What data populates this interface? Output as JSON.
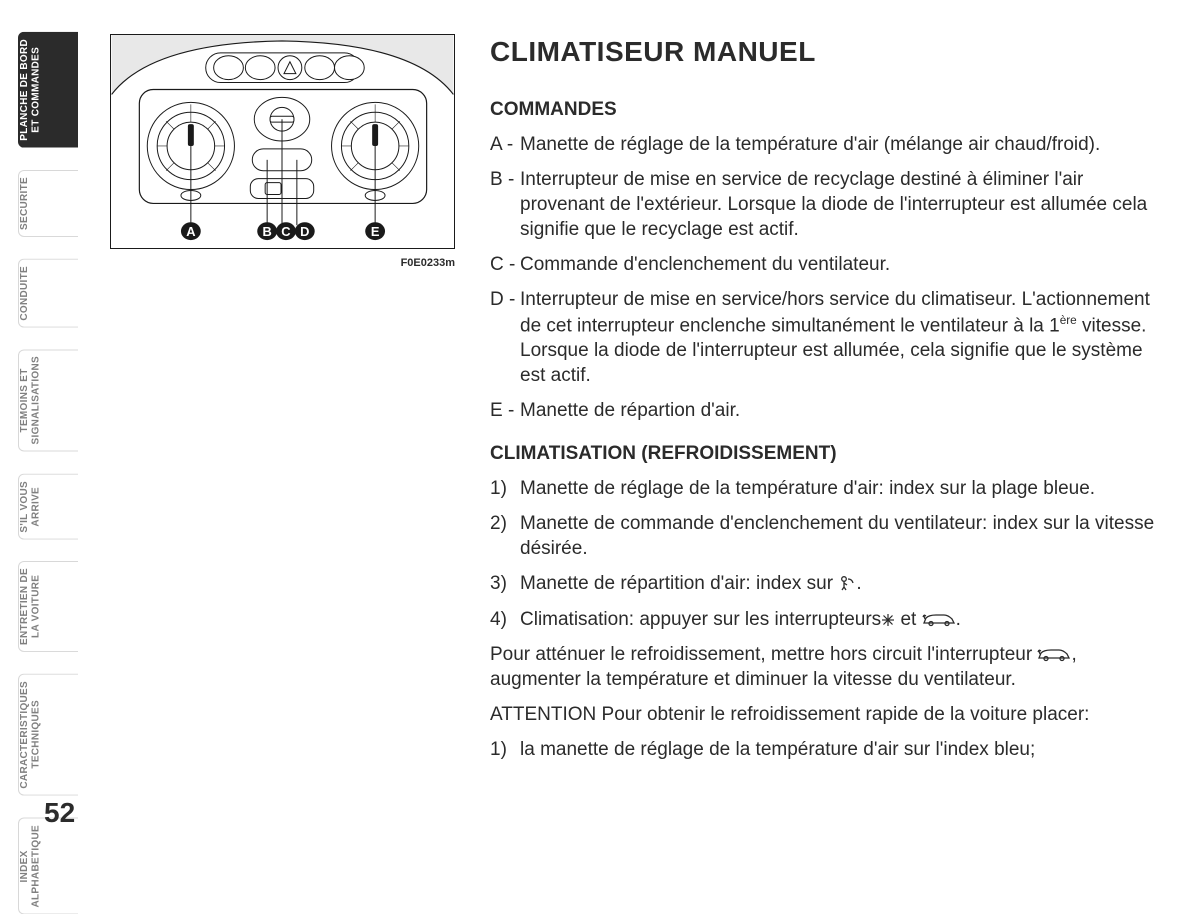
{
  "page_number": "52",
  "sidebar": {
    "tabs": [
      {
        "label": "PLANCHE DE BORD\nET COMMANDES",
        "active": true
      },
      {
        "label": "SECURITE",
        "active": false
      },
      {
        "label": "CONDUITE",
        "active": false
      },
      {
        "label": "TEMOINS ET\nSIGNALISATIONS",
        "active": false
      },
      {
        "label": "S'IL VOUS\nARRIVE",
        "active": false
      },
      {
        "label": "ENTRETIEN DE\nLA VOITURE",
        "active": false
      },
      {
        "label": "CARACTERISTIQUES\nTECHNIQUES",
        "active": false
      },
      {
        "label": "INDEX\nALPHABETIQUE",
        "active": false
      }
    ]
  },
  "figure": {
    "caption": "F0E0233m",
    "letters": [
      "A",
      "B",
      "C",
      "D",
      "E"
    ],
    "ellipse_fill": "#1a1a1a",
    "ellipse_text": "#ffffff",
    "stroke": "#1a1a1a",
    "shade": "#e8e8e8"
  },
  "content": {
    "title": "CLIMATISEUR MANUEL",
    "section1_title": "COMMANDES",
    "commandes": [
      {
        "letter": "A",
        "text": "Manette de réglage de la température d'air (mélange air chaud/froid)."
      },
      {
        "letter": "B",
        "text": "Interrupteur de mise en service de recyclage destiné à éliminer l'air provenant de l'extérieur. Lorsque la diode de l'interrupteur est allumée cela signifie que le recyclage est actif."
      },
      {
        "letter": "C",
        "text": "Commande d'enclenchement du ventilateur."
      },
      {
        "letter": "D",
        "text": "Interrupteur de mise en service/hors service du climatiseur. L'actionnement de cet interrupteur enclenche simultanément le ventilateur à la 1",
        "suffix_sup": "ère",
        "suffix_text": " vitesse. Lorsque la diode de l'interrupteur est allumée, cela signifie que le système est actif."
      },
      {
        "letter": "E",
        "text": "Manette de répartion d'air."
      }
    ],
    "section2_title": "CLIMATISATION (REFROIDISSEMENT)",
    "steps": [
      {
        "num": "1)",
        "text": "Manette de réglage de la température d'air: index sur la plage bleue."
      },
      {
        "num": "2)",
        "text": "Manette de commande d'enclenchement du ventilateur: index sur la vitesse désirée."
      },
      {
        "num": "3)",
        "text_before": "Manette de répartition d'air: index sur ",
        "icon": "person",
        "text_after": "."
      },
      {
        "num": "4)",
        "text_before": "Climatisation: appuyer sur les interrupteurs",
        "icon": "snow",
        "mid": " et ",
        "icon2": "car",
        "text_after": "."
      }
    ],
    "para1_before": "Pour atténuer le refroidissement, mettre hors circuit l'interrupteur ",
    "para1_after": ", augmenter la température et diminuer la vitesse du ventilateur.",
    "para2": "ATTENTION Pour obtenir le refroidissement rapide de la voiture placer:",
    "para3": {
      "num": "1)",
      "text": "la manette de réglage de la température d'air sur l'index bleu;"
    }
  },
  "colors": {
    "text": "#2b2b2b",
    "tab_inactive": "#808080",
    "tab_active_bg": "#2b2b2b",
    "tab_active_text": "#ffffff",
    "background": "#ffffff"
  }
}
